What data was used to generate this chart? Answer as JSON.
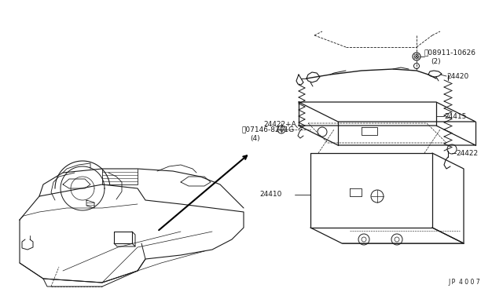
{
  "bg_color": "#ffffff",
  "line_color": "#1a1a1a",
  "text_color": "#1a1a1a",
  "label_fs": 6.0,
  "diagram_ref": "J P  4 0 0 7"
}
